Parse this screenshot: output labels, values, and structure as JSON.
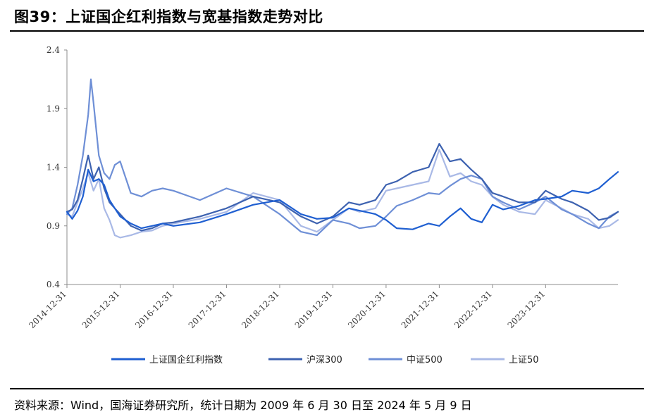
{
  "figure_title": "图39：上证国企红利指数与宽基指数走势对比",
  "footnote": "资料来源：Wind，国海证券研究所，统计日期为 2009 年 6 月 30 日至 2024 年 5 月 9 日",
  "colors": {
    "上证国企红利指数": "#1f5fd1",
    "沪深300": "#3d62b0",
    "中证500": "#6e8fd6",
    "上证50": "#a9b9e6"
  },
  "chart_data": {
    "type": "line",
    "title": "",
    "xlabel": "",
    "ylabel": "",
    "ylim": [
      0.4,
      2.4
    ],
    "yticks": [
      "0.4",
      "0.9",
      "1.4",
      "1.9",
      "2.4"
    ],
    "x_tick_labels": [
      "2014-12-31",
      "2015-12-31",
      "2016-12-31",
      "2017-12-31",
      "2018-12-31",
      "2019-12-31",
      "2020-12-31",
      "2021-12-31",
      "2022-12-31",
      "2023-12-31"
    ],
    "x_range": [
      2014.0,
      2024.36
    ],
    "legend_position": "bottom",
    "series": [
      {
        "name": "上证国企红利指数",
        "x": [
          2014.0,
          2014.1,
          2014.2,
          2014.3,
          2014.4,
          2014.5,
          2014.6,
          2014.7,
          2014.8,
          2014.9,
          2015.0,
          2015.2,
          2015.4,
          2015.6,
          2015.8,
          2016.0,
          2016.5,
          2017.0,
          2017.5,
          2018.0,
          2018.4,
          2018.7,
          2019.0,
          2019.3,
          2019.5,
          2019.8,
          2020.0,
          2020.2,
          2020.5,
          2020.8,
          2021.0,
          2021.2,
          2021.4,
          2021.6,
          2021.8,
          2022.0,
          2022.2,
          2022.5,
          2022.8,
          2023.0,
          2023.3,
          2023.5,
          2023.8,
          2024.0,
          2024.2,
          2024.36
        ],
        "y": [
          1.02,
          0.96,
          1.03,
          1.15,
          1.38,
          1.28,
          1.3,
          1.25,
          1.12,
          1.05,
          0.98,
          0.92,
          0.88,
          0.9,
          0.92,
          0.9,
          0.93,
          1.0,
          1.08,
          1.12,
          1.0,
          0.96,
          0.97,
          1.05,
          1.03,
          1.0,
          0.95,
          0.88,
          0.87,
          0.92,
          0.9,
          0.98,
          1.05,
          0.96,
          0.93,
          1.08,
          1.04,
          1.07,
          1.12,
          1.13,
          1.15,
          1.2,
          1.18,
          1.22,
          1.3,
          1.36
        ]
      },
      {
        "name": "沪深300",
        "x": [
          2014.0,
          2014.1,
          2014.2,
          2014.3,
          2014.4,
          2014.5,
          2014.6,
          2014.7,
          2014.8,
          2014.9,
          2015.0,
          2015.2,
          2015.4,
          2015.6,
          2015.8,
          2016.0,
          2016.5,
          2017.0,
          2017.5,
          2018.0,
          2018.4,
          2018.7,
          2019.0,
          2019.3,
          2019.5,
          2019.8,
          2020.0,
          2020.2,
          2020.5,
          2020.8,
          2021.0,
          2021.2,
          2021.4,
          2021.6,
          2021.8,
          2022.0,
          2022.2,
          2022.5,
          2022.8,
          2023.0,
          2023.3,
          2023.5,
          2023.8,
          2024.0,
          2024.2,
          2024.36
        ],
        "y": [
          1.02,
          1.04,
          1.12,
          1.3,
          1.5,
          1.3,
          1.4,
          1.22,
          1.1,
          1.05,
          1.0,
          0.9,
          0.86,
          0.88,
          0.92,
          0.93,
          0.98,
          1.05,
          1.15,
          1.1,
          0.98,
          0.92,
          0.98,
          1.1,
          1.08,
          1.12,
          1.25,
          1.28,
          1.36,
          1.4,
          1.6,
          1.45,
          1.47,
          1.38,
          1.3,
          1.18,
          1.15,
          1.1,
          1.1,
          1.2,
          1.13,
          1.1,
          1.03,
          0.95,
          0.97,
          1.02
        ]
      },
      {
        "name": "中证500",
        "x": [
          2014.0,
          2014.1,
          2014.2,
          2014.3,
          2014.4,
          2014.45,
          2014.5,
          2014.6,
          2014.7,
          2014.8,
          2014.9,
          2015.0,
          2015.2,
          2015.4,
          2015.6,
          2015.8,
          2016.0,
          2016.5,
          2017.0,
          2017.5,
          2018.0,
          2018.4,
          2018.7,
          2019.0,
          2019.3,
          2019.5,
          2019.8,
          2020.0,
          2020.2,
          2020.5,
          2020.8,
          2021.0,
          2021.2,
          2021.4,
          2021.6,
          2021.8,
          2022.0,
          2022.2,
          2022.5,
          2022.8,
          2023.0,
          2023.3,
          2023.5,
          2023.8,
          2024.0,
          2024.2,
          2024.36
        ],
        "y": [
          1.0,
          1.05,
          1.25,
          1.5,
          1.85,
          2.15,
          1.95,
          1.5,
          1.35,
          1.3,
          1.42,
          1.45,
          1.18,
          1.15,
          1.2,
          1.22,
          1.2,
          1.12,
          1.22,
          1.15,
          1.0,
          0.85,
          0.82,
          0.95,
          0.92,
          0.88,
          0.9,
          0.98,
          1.07,
          1.12,
          1.18,
          1.17,
          1.24,
          1.3,
          1.33,
          1.3,
          1.15,
          1.1,
          1.04,
          1.1,
          1.15,
          1.04,
          1.0,
          0.92,
          0.88,
          0.98,
          1.02
        ]
      },
      {
        "name": "上证50",
        "x": [
          2014.0,
          2014.1,
          2014.2,
          2014.3,
          2014.4,
          2014.5,
          2014.6,
          2014.7,
          2014.8,
          2014.9,
          2015.0,
          2015.2,
          2015.4,
          2015.6,
          2015.8,
          2016.0,
          2016.5,
          2017.0,
          2017.5,
          2018.0,
          2018.4,
          2018.7,
          2019.0,
          2019.3,
          2019.5,
          2019.8,
          2020.0,
          2020.2,
          2020.5,
          2020.8,
          2021.0,
          2021.2,
          2021.4,
          2021.6,
          2021.8,
          2022.0,
          2022.2,
          2022.5,
          2022.8,
          2023.0,
          2023.3,
          2023.5,
          2023.8,
          2024.0,
          2024.2,
          2024.36
        ],
        "y": [
          1.0,
          0.98,
          1.1,
          1.22,
          1.35,
          1.2,
          1.3,
          1.05,
          0.95,
          0.82,
          0.8,
          0.82,
          0.85,
          0.86,
          0.9,
          0.92,
          0.96,
          1.02,
          1.18,
          1.12,
          0.9,
          0.85,
          0.95,
          1.05,
          1.02,
          1.05,
          1.2,
          1.22,
          1.25,
          1.28,
          1.55,
          1.32,
          1.35,
          1.28,
          1.25,
          1.15,
          1.08,
          1.02,
          1.0,
          1.12,
          1.05,
          1.0,
          0.96,
          0.88,
          0.9,
          0.95
        ]
      }
    ]
  }
}
